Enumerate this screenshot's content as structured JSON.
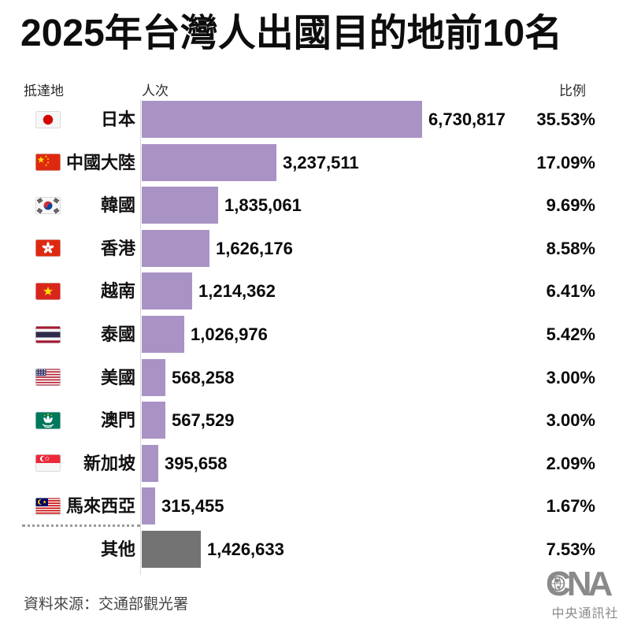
{
  "title": "2025年台灣人出國目的地前10名",
  "header": {
    "destination": "抵達地",
    "count": "人次",
    "ratio": "比例"
  },
  "rows": [
    {
      "flag": "jp",
      "flag_name": "japan",
      "label": "日本",
      "value": "6,730,817",
      "value_num": 6730817,
      "pct": "35.53%",
      "is_other": false
    },
    {
      "flag": "cn",
      "flag_name": "china",
      "label": "中國大陸",
      "value": "3,237,511",
      "value_num": 3237511,
      "pct": "17.09%",
      "is_other": false
    },
    {
      "flag": "kr",
      "flag_name": "south-korea",
      "label": "韓國",
      "value": "1,835,061",
      "value_num": 1835061,
      "pct": "9.69%",
      "is_other": false
    },
    {
      "flag": "hk",
      "flag_name": "hong-kong",
      "label": "香港",
      "value": "1,626,176",
      "value_num": 1626176,
      "pct": "8.58%",
      "is_other": false
    },
    {
      "flag": "vn",
      "flag_name": "vietnam",
      "label": "越南",
      "value": "1,214,362",
      "value_num": 1214362,
      "pct": "6.41%",
      "is_other": false
    },
    {
      "flag": "th",
      "flag_name": "thailand",
      "label": "泰國",
      "value": "1,026,976",
      "value_num": 1026976,
      "pct": "5.42%",
      "is_other": false
    },
    {
      "flag": "us",
      "flag_name": "united-states",
      "label": "美國",
      "value": "568,258",
      "value_num": 568258,
      "pct": "3.00%",
      "is_other": false
    },
    {
      "flag": "mo",
      "flag_name": "macau",
      "label": "澳門",
      "value": "567,529",
      "value_num": 567529,
      "pct": "3.00%",
      "is_other": false
    },
    {
      "flag": "sg",
      "flag_name": "singapore",
      "label": "新加坡",
      "value": "395,658",
      "value_num": 395658,
      "pct": "2.09%",
      "is_other": false
    },
    {
      "flag": "my",
      "flag_name": "malaysia",
      "label": "馬來西亞",
      "value": "315,455",
      "value_num": 315455,
      "pct": "1.67%",
      "is_other": false
    },
    {
      "flag": null,
      "flag_name": null,
      "label": "其他",
      "value": "1,426,633",
      "value_num": 1426633,
      "pct": "7.53%",
      "is_other": true
    }
  ],
  "source": "資料來源：交通部觀光署",
  "logo": {
    "text": "CNA",
    "subtext": "中央通訊社"
  },
  "colors": {
    "bar": "#a993c5",
    "other_bar": "#737373",
    "title_text": "#0d0d0d",
    "axis_line": "#d8d8d8",
    "logo_gray": "#8a8a8a"
  },
  "chart_data": {
    "type": "bar",
    "orientation": "horizontal",
    "title": "2025年台灣人出國目的地前10名",
    "categories": [
      "日本",
      "中國大陸",
      "韓國",
      "香港",
      "越南",
      "泰國",
      "美國",
      "澳門",
      "新加坡",
      "馬來西亞",
      "其他"
    ],
    "series": [
      {
        "name": "人次",
        "values": [
          6730817,
          3237511,
          1835061,
          1626176,
          1214362,
          1026976,
          568258,
          567529,
          395658,
          315455,
          1426633
        ]
      },
      {
        "name": "比例",
        "unit": "%",
        "values": [
          35.53,
          17.09,
          9.69,
          8.58,
          6.41,
          5.42,
          3.0,
          3.0,
          2.09,
          1.67,
          7.53
        ]
      }
    ],
    "value_labels": true,
    "grid": false,
    "legend": false,
    "xlim": [
      0,
      6730817
    ],
    "source": "資料來源：交通部觀光署"
  }
}
